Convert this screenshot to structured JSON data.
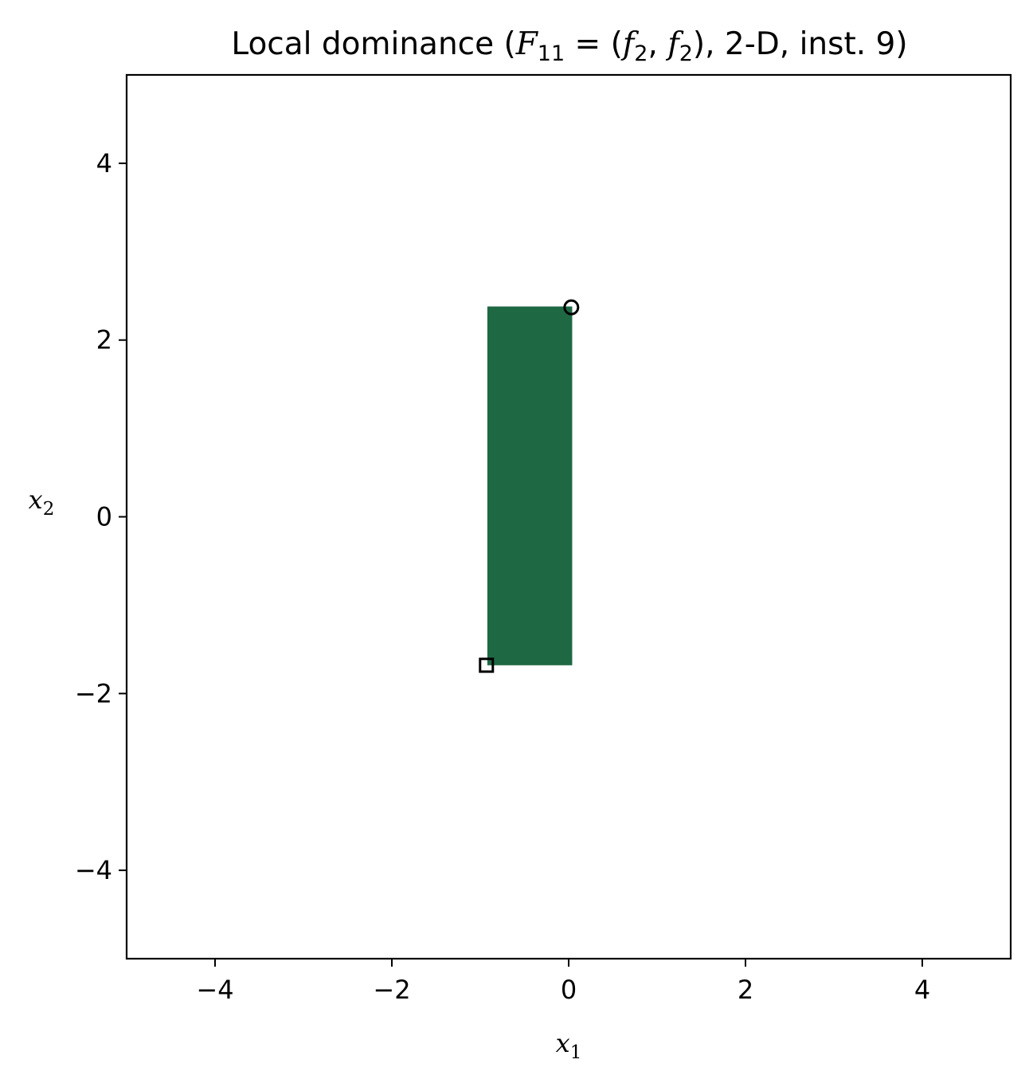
{
  "chart_data": {
    "type": "scatter",
    "title": {
      "prefix": "Local dominance (",
      "math": {
        "F": "F",
        "F_sub": "11",
        "eq": " = (",
        "f1": "f",
        "f1_sub": "2",
        "comma": ", ",
        "f2": "f",
        "f2_sub": "2",
        "close": ")"
      },
      "suffix": ", 2-D, inst. 9)"
    },
    "xlabel": {
      "base": "x",
      "sub": "1"
    },
    "ylabel": {
      "base": "x",
      "sub": "2"
    },
    "xlim": [
      -5,
      5
    ],
    "ylim": [
      -5,
      5
    ],
    "xticks": [
      -4,
      -2,
      0,
      2,
      4
    ],
    "yticks": [
      -4,
      -2,
      0,
      2,
      4
    ],
    "xtick_labels": [
      "−4",
      "−2",
      "0",
      "2",
      "4"
    ],
    "ytick_labels": [
      "−4",
      "−2",
      "0",
      "2",
      "4"
    ],
    "grid": false,
    "region": {
      "x": [
        -0.92,
        0.04
      ],
      "y": [
        -1.68,
        2.38
      ],
      "color": "#1f6844"
    },
    "markers": [
      {
        "shape": "circle",
        "x": 0.03,
        "y": 2.37,
        "color": "#000000"
      },
      {
        "shape": "square",
        "x": -0.93,
        "y": -1.68,
        "color": "#000000"
      }
    ]
  }
}
